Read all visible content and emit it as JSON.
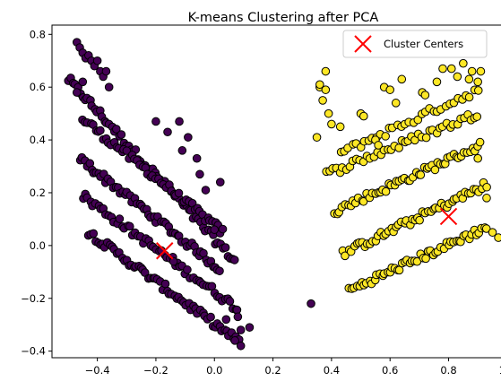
{
  "chart_data": {
    "type": "scatter",
    "title": "K-means Clustering after PCA",
    "xlabel": "",
    "ylabel": "",
    "xlim": [
      -0.555,
      1.025
    ],
    "ylim": [
      -0.425,
      0.835
    ],
    "xticks": [
      -0.4,
      -0.2,
      0.0,
      0.2,
      0.4,
      0.6,
      0.8,
      1.0
    ],
    "xtick_labels": [
      "−0.4",
      "−0.2",
      "0.0",
      "0.2",
      "0.4",
      "0.6",
      "0.8",
      "1.0"
    ],
    "yticks": [
      -0.4,
      -0.2,
      0.0,
      0.2,
      0.4,
      0.6,
      0.8
    ],
    "ytick_labels": [
      "−0.4",
      "−0.2",
      "0.0",
      "0.2",
      "0.4",
      "0.6",
      "0.8"
    ],
    "grid": false,
    "legend": {
      "position": "top-right",
      "entries": [
        "Cluster Centers"
      ]
    },
    "colors": {
      "cluster_0": "#440154",
      "cluster_1": "#fde725",
      "point_edge": "#000000",
      "center": "#ff0000"
    },
    "bands": [
      {
        "cluster": 0,
        "x_start": -0.5,
        "y_start": 0.63,
        "x_end": 0.07,
        "y_end": -0.06,
        "count": 70
      },
      {
        "cluster": 0,
        "x_start": -0.45,
        "y_start": 0.48,
        "x_end": 0.03,
        "y_end": 0.05,
        "count": 55
      },
      {
        "cluster": 0,
        "x_start": -0.46,
        "y_start": 0.33,
        "x_end": 0.02,
        "y_end": -0.09,
        "count": 60
      },
      {
        "cluster": 0,
        "x_start": -0.45,
        "y_start": 0.19,
        "x_end": 0.08,
        "y_end": -0.24,
        "count": 60
      },
      {
        "cluster": 0,
        "x_start": -0.43,
        "y_start": 0.05,
        "x_end": 0.09,
        "y_end": -0.37,
        "count": 65
      },
      {
        "cluster": 1,
        "x_start": 0.43,
        "y_start": 0.35,
        "x_end": 0.9,
        "y_end": 0.59,
        "count": 35
      },
      {
        "cluster": 1,
        "x_start": 0.38,
        "y_start": 0.27,
        "x_end": 0.9,
        "y_end": 0.5,
        "count": 45
      },
      {
        "cluster": 1,
        "x_start": 0.41,
        "y_start": 0.13,
        "x_end": 0.91,
        "y_end": 0.38,
        "count": 55
      },
      {
        "cluster": 1,
        "x_start": 0.44,
        "y_start": -0.03,
        "x_end": 0.93,
        "y_end": 0.23,
        "count": 55
      },
      {
        "cluster": 1,
        "x_start": 0.46,
        "y_start": -0.17,
        "x_end": 0.93,
        "y_end": 0.07,
        "count": 55
      }
    ],
    "series": [
      {
        "cluster": 0,
        "color": "#440154",
        "x": [
          -0.47,
          -0.46,
          -0.45,
          -0.44,
          -0.43,
          -0.42,
          -0.41,
          -0.4,
          -0.39,
          -0.38,
          -0.37,
          -0.36,
          -0.45,
          -0.47,
          -0.2,
          -0.16,
          -0.12,
          -0.11,
          -0.09,
          -0.06,
          -0.05,
          -0.03,
          0.0,
          0.02,
          0.04,
          0.08,
          0.07,
          0.09,
          -0.14
        ],
        "y": [
          0.77,
          0.75,
          0.73,
          0.71,
          0.72,
          0.7,
          0.68,
          0.7,
          0.66,
          0.64,
          0.66,
          0.6,
          0.62,
          0.58,
          0.47,
          0.43,
          0.47,
          0.36,
          0.41,
          0.33,
          0.27,
          0.21,
          0.06,
          0.24,
          -0.28,
          -0.27,
          -0.36,
          -0.32,
          -0.06
        ]
      },
      {
        "cluster": 1,
        "color": "#fde725",
        "x": [
          0.36,
          0.38,
          0.36,
          0.38,
          0.37,
          0.39,
          0.35,
          0.4,
          0.43,
          0.5,
          0.51,
          0.55,
          0.56,
          0.58,
          0.6,
          0.62,
          0.64,
          0.71,
          0.72,
          0.76,
          0.78,
          0.81,
          0.83,
          0.85,
          0.87,
          0.88,
          0.9,
          0.91,
          0.9,
          0.93,
          0.95,
          0.97
        ],
        "y": [
          0.6,
          0.59,
          0.61,
          0.66,
          0.55,
          0.5,
          0.41,
          0.46,
          0.45,
          0.5,
          0.49,
          0.4,
          0.38,
          0.6,
          0.59,
          0.54,
          0.63,
          0.58,
          0.57,
          0.62,
          0.67,
          0.67,
          0.64,
          0.69,
          0.63,
          0.66,
          0.62,
          0.66,
          0.33,
          0.18,
          0.05,
          0.03
        ]
      }
    ],
    "outliers": [
      {
        "cluster": 0,
        "x": 0.33,
        "y": -0.22
      },
      {
        "cluster": 0,
        "x": 0.12,
        "y": -0.31
      }
    ],
    "cluster_centers": {
      "name": "Cluster Centers",
      "marker": "x",
      "color": "#ff0000",
      "points": [
        {
          "x": -0.17,
          "y": -0.02
        },
        {
          "x": 0.8,
          "y": 0.11
        }
      ]
    }
  }
}
